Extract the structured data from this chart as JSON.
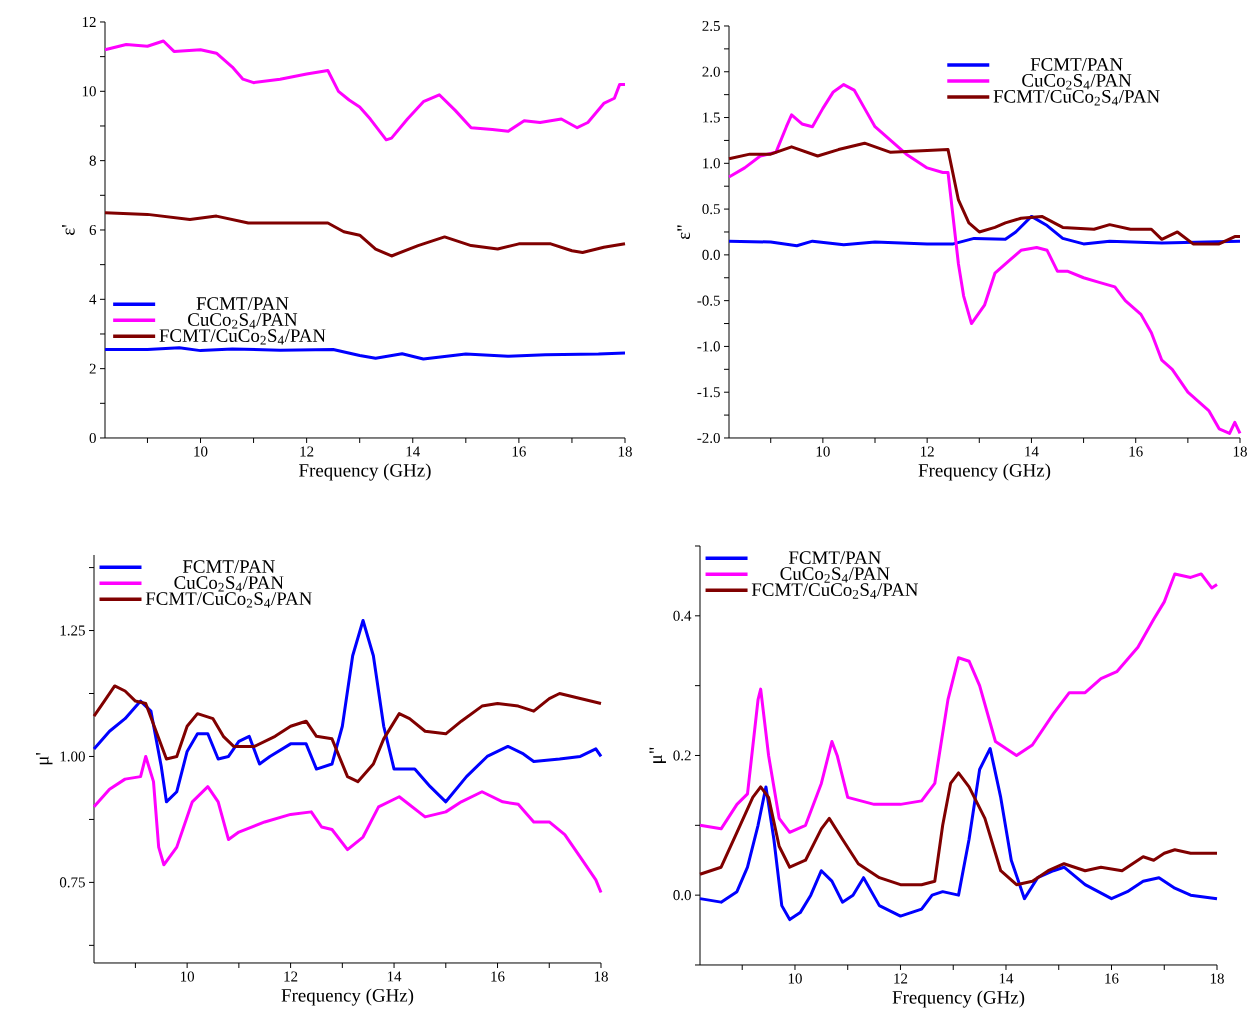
{
  "chart_data": [
    {
      "type": "line",
      "xlabel": "Frequency (GHz)",
      "ylabel": "ε'",
      "xlim": [
        8.2,
        18
      ],
      "ylim": [
        0,
        12
      ],
      "xticks": [
        {
          "value": 9,
          "label": null
        },
        10,
        {
          "value": 11,
          "label": null
        },
        12,
        {
          "value": 13,
          "label": null
        },
        14,
        {
          "value": 15,
          "label": null
        },
        16,
        {
          "value": 17,
          "label": null
        },
        18
      ],
      "yticks": [
        0,
        {
          "value": 1,
          "label": null
        },
        2,
        {
          "value": 3,
          "label": null
        },
        4,
        {
          "value": 5,
          "label": null
        },
        6,
        {
          "value": 7,
          "label": null
        },
        8,
        {
          "value": 9,
          "label": null
        },
        10,
        {
          "value": 11,
          "label": null
        },
        12
      ],
      "legend": "bottom left",
      "series": [
        {
          "name": "FCMT/PAN",
          "color": "#0000ff",
          "x": [
            8.2,
            9,
            9.6,
            10,
            10.6,
            11.5,
            12.5,
            13,
            13.3,
            13.8,
            14.2,
            14.6,
            15,
            15.8,
            16.5,
            17.5,
            18
          ],
          "values": [
            2.55,
            2.55,
            2.6,
            2.52,
            2.57,
            2.53,
            2.55,
            2.38,
            2.3,
            2.43,
            2.28,
            2.35,
            2.42,
            2.36,
            2.4,
            2.42,
            2.45
          ]
        },
        {
          "name": "CuCo$_{2}$S$_{4}$/PAN",
          "color": "#ff00ff",
          "x": [
            8.2,
            8.6,
            9,
            9.3,
            9.5,
            10,
            10.3,
            10.6,
            10.8,
            11,
            11.5,
            12,
            12.4,
            12.6,
            12.8,
            13,
            13.2,
            13.5,
            13.6,
            13.9,
            14.2,
            14.5,
            14.8,
            15.1,
            15.5,
            15.8,
            16.1,
            16.4,
            16.8,
            17.1,
            17.3,
            17.6,
            17.8,
            17.9,
            18
          ],
          "values": [
            11.2,
            11.35,
            11.3,
            11.45,
            11.15,
            11.2,
            11.1,
            10.7,
            10.35,
            10.25,
            10.35,
            10.5,
            10.6,
            10.0,
            9.75,
            9.55,
            9.2,
            8.6,
            8.65,
            9.2,
            9.7,
            9.9,
            9.45,
            8.95,
            8.9,
            8.85,
            9.15,
            9.1,
            9.2,
            8.95,
            9.1,
            9.65,
            9.8,
            10.2,
            10.2
          ]
        },
        {
          "name": "FCMT/CuCo$_{2}$S$_{4}$/PAN",
          "color": "#800000",
          "x": [
            8.2,
            9,
            9.8,
            10.3,
            10.9,
            11.5,
            12.4,
            12.7,
            13,
            13.3,
            13.6,
            14.1,
            14.6,
            15.1,
            15.6,
            16,
            16.6,
            17,
            17.2,
            17.6,
            18
          ],
          "values": [
            6.5,
            6.45,
            6.3,
            6.4,
            6.2,
            6.2,
            6.2,
            5.95,
            5.85,
            5.45,
            5.25,
            5.55,
            5.8,
            5.55,
            5.45,
            5.6,
            5.6,
            5.4,
            5.35,
            5.5,
            5.6
          ]
        }
      ]
    },
    {
      "type": "line",
      "xlabel": "Frequency (GHz)",
      "ylabel": "ε\"",
      "xlim": [
        8.2,
        18
      ],
      "ylim": [
        -2,
        2.5
      ],
      "xticks": [
        {
          "value": 9,
          "label": null
        },
        10,
        {
          "value": 11,
          "label": null
        },
        12,
        {
          "value": 13,
          "label": null
        },
        14,
        {
          "value": 15,
          "label": null
        },
        16,
        {
          "value": 17,
          "label": null
        },
        18
      ],
      "yticks": [
        {
          "value": -2,
          "label": "-2.0"
        },
        {
          "value": -1.75,
          "label": null
        },
        {
          "value": -1.5,
          "label": "-1.5"
        },
        {
          "value": -1.25,
          "label": null
        },
        {
          "value": -1,
          "label": "-1.0"
        },
        {
          "value": -0.75,
          "label": null
        },
        {
          "value": -0.5,
          "label": "-0.5"
        },
        {
          "value": -0.25,
          "label": null
        },
        {
          "value": 0,
          "label": "0.0"
        },
        {
          "value": 0.25,
          "label": null
        },
        {
          "value": 0.5,
          "label": "0.5"
        },
        {
          "value": 0.75,
          "label": null
        },
        {
          "value": 1,
          "label": "1.0"
        },
        {
          "value": 1.25,
          "label": null
        },
        {
          "value": 1.5,
          "label": "1.5"
        },
        {
          "value": 1.75,
          "label": null
        },
        {
          "value": 2,
          "label": "2.0"
        },
        {
          "value": 2.25,
          "label": null
        },
        {
          "value": 2.5,
          "label": "2.5"
        }
      ],
      "legend": "top right",
      "series": [
        {
          "name": "FCMT/PAN",
          "color": "#0000ff",
          "x": [
            8.2,
            9,
            9.5,
            9.8,
            10.4,
            11,
            12,
            12.5,
            12.9,
            13.5,
            13.7,
            14,
            14.3,
            14.6,
            15,
            15.5,
            16.5,
            17.5,
            18
          ],
          "values": [
            0.15,
            0.14,
            0.1,
            0.15,
            0.11,
            0.14,
            0.12,
            0.12,
            0.18,
            0.17,
            0.25,
            0.42,
            0.32,
            0.18,
            0.12,
            0.15,
            0.13,
            null,
            0.15
          ]
        },
        {
          "name": "CuCo$_{2}$S$_{4}$/PAN",
          "color": "#ff00ff",
          "x": [
            8.2,
            8.5,
            8.8,
            9.1,
            9.3,
            9.4,
            9.6,
            9.8,
            10,
            10.2,
            10.4,
            10.6,
            10.8,
            11,
            11.3,
            11.6,
            12,
            12.3,
            12.4,
            12.5,
            12.6,
            12.7,
            12.85,
            13.1,
            13.3,
            13.6,
            13.8,
            14.1,
            14.3,
            14.5,
            14.7,
            15,
            15.3,
            15.6,
            15.8,
            16.1,
            16.3,
            16.5,
            16.7,
            17,
            17.2,
            17.4,
            17.6,
            17.8,
            17.9,
            18
          ],
          "values": [
            0.85,
            0.95,
            1.08,
            1.12,
            1.4,
            1.53,
            1.43,
            1.4,
            1.6,
            1.78,
            1.86,
            1.8,
            1.6,
            1.4,
            1.25,
            1.1,
            0.95,
            0.9,
            0.9,
            0.4,
            -0.1,
            -0.45,
            -0.75,
            -0.55,
            -0.2,
            -0.05,
            0.05,
            0.08,
            0.05,
            -0.18,
            -0.18,
            -0.25,
            -0.3,
            -0.35,
            -0.5,
            -0.65,
            -0.85,
            -1.15,
            -1.25,
            -1.5,
            -1.6,
            -1.7,
            -1.9,
            -1.95,
            -1.83,
            -1.95
          ]
        },
        {
          "name": "FCMT/CuCo$_{2}$S$_{4}$/PAN",
          "color": "#800000",
          "x": [
            8.2,
            8.6,
            9,
            9.4,
            9.9,
            10.3,
            10.8,
            11.3,
            12.4,
            12.6,
            12.8,
            13,
            13.3,
            13.5,
            13.8,
            14.2,
            14.6,
            15.2,
            15.5,
            15.9,
            16.3,
            16.5,
            16.8,
            17.1,
            17.6,
            17.9,
            18
          ],
          "values": [
            1.05,
            1.1,
            1.1,
            1.18,
            1.08,
            1.15,
            1.22,
            1.12,
            1.15,
            0.6,
            0.35,
            0.25,
            0.3,
            0.35,
            0.4,
            0.42,
            0.3,
            0.28,
            0.33,
            0.28,
            0.28,
            0.17,
            0.25,
            0.12,
            0.12,
            0.2,
            0.2
          ]
        }
      ]
    },
    {
      "type": "line",
      "xlabel": "Frequency (GHz)",
      "ylabel": "μ'",
      "xlim": [
        8.2,
        18
      ],
      "ylim": [
        0.59,
        1.4
      ],
      "xticks": [
        {
          "value": 9,
          "label": null
        },
        10,
        {
          "value": 11,
          "label": null
        },
        12,
        {
          "value": 13,
          "label": null
        },
        14,
        {
          "value": 15,
          "label": null
        },
        16,
        {
          "value": 17,
          "label": null
        },
        18
      ],
      "yticks": [
        {
          "value": 0.625,
          "label": null
        },
        0.75,
        {
          "value": 0.875,
          "label": null
        },
        {
          "value": 1,
          "label": "1.00"
        },
        {
          "value": 1.125,
          "label": null
        },
        1.25,
        {
          "value": 1.375,
          "label": null
        }
      ],
      "legend": "top left",
      "series": [
        {
          "name": "FCMT/PAN",
          "color": "#0000ff",
          "x": [
            8.2,
            8.5,
            8.8,
            9.1,
            9.3,
            9.5,
            9.6,
            9.8,
            10,
            10.2,
            10.4,
            10.6,
            10.8,
            11,
            11.2,
            11.4,
            11.6,
            12,
            12.3,
            12.5,
            12.8,
            13,
            13.2,
            13.4,
            13.6,
            13.8,
            14,
            14.4,
            14.7,
            15,
            15.4,
            15.8,
            16.2,
            16.5,
            16.7,
            17.2,
            17.6,
            17.9,
            18
          ],
          "values": [
            1.015,
            1.05,
            1.075,
            1.11,
            1.09,
            0.98,
            0.91,
            0.93,
            1.01,
            1.045,
            1.045,
            0.995,
            1.0,
            1.03,
            1.04,
            0.985,
            1.0,
            1.025,
            1.025,
            0.975,
            0.985,
            1.06,
            1.2,
            1.27,
            1.2,
            1.06,
            0.975,
            0.975,
            0.94,
            0.91,
            0.96,
            1.0,
            1.02,
            1.005,
            0.99,
            0.995,
            1.0,
            1.015,
            1.0
          ]
        },
        {
          "name": "CuCo$_{2}$S$_{4}$/PAN",
          "color": "#ff00ff",
          "x": [
            8.2,
            8.5,
            8.8,
            9.1,
            9.2,
            9.35,
            9.45,
            9.55,
            9.8,
            10.1,
            10.4,
            10.6,
            10.8,
            11,
            11.5,
            12,
            12.4,
            12.6,
            12.8,
            13.1,
            13.4,
            13.7,
            14.1,
            14.6,
            15,
            15.3,
            15.7,
            16.1,
            16.4,
            16.7,
            17,
            17.3,
            17.6,
            17.9,
            18
          ],
          "values": [
            0.9,
            0.935,
            0.955,
            0.96,
            1.0,
            0.95,
            0.82,
            0.785,
            0.82,
            0.91,
            0.94,
            0.91,
            0.835,
            0.85,
            0.87,
            0.885,
            0.89,
            0.86,
            0.855,
            0.815,
            0.84,
            0.9,
            0.92,
            0.88,
            0.89,
            0.91,
            0.93,
            0.91,
            0.905,
            0.87,
            0.87,
            0.845,
            0.8,
            0.755,
            0.73
          ]
        },
        {
          "name": "FCMT/CuCo$_{2}$S$_{4}$/PAN",
          "color": "#800000",
          "x": [
            8.2,
            8.4,
            8.6,
            8.8,
            9,
            9.2,
            9.4,
            9.6,
            9.8,
            10,
            10.2,
            10.5,
            10.7,
            10.9,
            11.3,
            11.7,
            12,
            12.3,
            12.5,
            12.8,
            13.1,
            13.3,
            13.6,
            13.8,
            14.1,
            14.3,
            14.6,
            15,
            15.3,
            15.7,
            16,
            16.4,
            16.7,
            17,
            17.2,
            17.6,
            18
          ],
          "values": [
            1.08,
            1.11,
            1.14,
            1.13,
            1.11,
            1.105,
            1.05,
            0.995,
            1.0,
            1.06,
            1.085,
            1.075,
            1.04,
            1.02,
            1.02,
            1.04,
            1.06,
            1.07,
            1.04,
            1.035,
            0.96,
            0.95,
            0.985,
            1.035,
            1.085,
            1.075,
            1.05,
            1.045,
            1.07,
            1.1,
            1.105,
            1.1,
            1.09,
            1.115,
            1.125,
            1.115,
            1.105
          ]
        }
      ]
    },
    {
      "type": "line",
      "xlabel": "Frequency (GHz)",
      "ylabel": "μ\"",
      "xlim": [
        8.2,
        18
      ],
      "ylim": [
        -0.1,
        0.5
      ],
      "xticks": [
        {
          "value": 9,
          "label": null
        },
        10,
        {
          "value": 11,
          "label": null
        },
        12,
        {
          "value": 13,
          "label": null
        },
        14,
        {
          "value": 15,
          "label": null
        },
        16,
        {
          "value": 17,
          "label": null
        },
        18
      ],
      "yticks": [
        {
          "value": -0.1,
          "label": null
        },
        {
          "value": 0,
          "label": "0.0"
        },
        {
          "value": 0.1,
          "label": null
        },
        0.2,
        {
          "value": 0.3,
          "label": null
        },
        0.4,
        {
          "value": 0.5,
          "label": null
        }
      ],
      "legend": "top left",
      "series": [
        {
          "name": "FCMT/PAN",
          "color": "#0000ff",
          "x": [
            8.2,
            8.6,
            8.9,
            9.1,
            9.3,
            9.45,
            9.6,
            9.75,
            9.9,
            10.1,
            10.3,
            10.5,
            10.7,
            10.9,
            11.1,
            11.3,
            11.6,
            12,
            12.4,
            12.6,
            12.8,
            13.1,
            13.3,
            13.5,
            13.7,
            13.9,
            14.1,
            14.35,
            14.6,
            14.9,
            15.1,
            15.5,
            16,
            16.3,
            16.6,
            16.9,
            17.2,
            17.5,
            18
          ],
          "values": [
            -0.005,
            -0.01,
            0.005,
            0.04,
            0.1,
            0.155,
            0.08,
            -0.015,
            -0.035,
            -0.025,
            0.0,
            0.035,
            0.02,
            -0.01,
            0.0,
            0.025,
            -0.015,
            -0.03,
            -0.02,
            0.0,
            0.005,
            0.0,
            0.08,
            0.18,
            0.21,
            0.14,
            0.05,
            -0.005,
            0.025,
            0.035,
            0.04,
            0.015,
            -0.005,
            0.005,
            0.02,
            0.025,
            0.01,
            0.0,
            -0.005
          ]
        },
        {
          "name": "CuCo$_{2}$S$_{4}$/PAN",
          "color": "#ff00ff",
          "x": [
            8.2,
            8.6,
            8.9,
            9.1,
            9.3,
            9.35,
            9.5,
            9.7,
            9.9,
            10.2,
            10.5,
            10.7,
            10.8,
            11,
            11.5,
            12,
            12.4,
            12.65,
            12.9,
            13.1,
            13.3,
            13.5,
            13.8,
            14.2,
            14.5,
            14.9,
            15.2,
            15.5,
            15.8,
            16.1,
            16.5,
            16.8,
            17,
            17.2,
            17.5,
            17.7,
            17.9,
            18
          ],
          "values": [
            0.1,
            0.095,
            0.13,
            0.145,
            0.28,
            0.295,
            0.2,
            0.11,
            0.09,
            0.1,
            0.16,
            0.22,
            0.2,
            0.14,
            0.13,
            0.13,
            0.135,
            0.16,
            0.28,
            0.34,
            0.335,
            0.3,
            0.22,
            0.2,
            0.215,
            0.26,
            0.29,
            0.29,
            0.31,
            0.32,
            0.355,
            0.395,
            0.42,
            0.46,
            0.455,
            0.46,
            0.44,
            0.445
          ]
        },
        {
          "name": "FCMT/CuCo$_{2}$S$_{4}$/PAN",
          "color": "#800000",
          "x": [
            8.2,
            8.6,
            8.9,
            9.2,
            9.35,
            9.5,
            9.7,
            9.9,
            10.2,
            10.5,
            10.65,
            10.9,
            11.2,
            11.6,
            12,
            12.4,
            12.65,
            12.8,
            12.95,
            13.1,
            13.3,
            13.6,
            13.9,
            14.2,
            14.5,
            14.8,
            15.1,
            15.5,
            15.8,
            16.2,
            16.6,
            16.8,
            17,
            17.2,
            17.5,
            18
          ],
          "values": [
            0.03,
            0.04,
            0.09,
            0.14,
            0.155,
            0.14,
            0.07,
            0.04,
            0.05,
            0.095,
            0.11,
            0.08,
            0.045,
            0.025,
            0.015,
            0.015,
            0.02,
            0.1,
            0.16,
            0.175,
            0.155,
            0.11,
            0.035,
            0.015,
            0.02,
            0.035,
            0.045,
            0.035,
            0.04,
            0.035,
            0.055,
            0.05,
            0.06,
            0.065,
            0.06,
            0.06
          ]
        }
      ]
    }
  ]
}
